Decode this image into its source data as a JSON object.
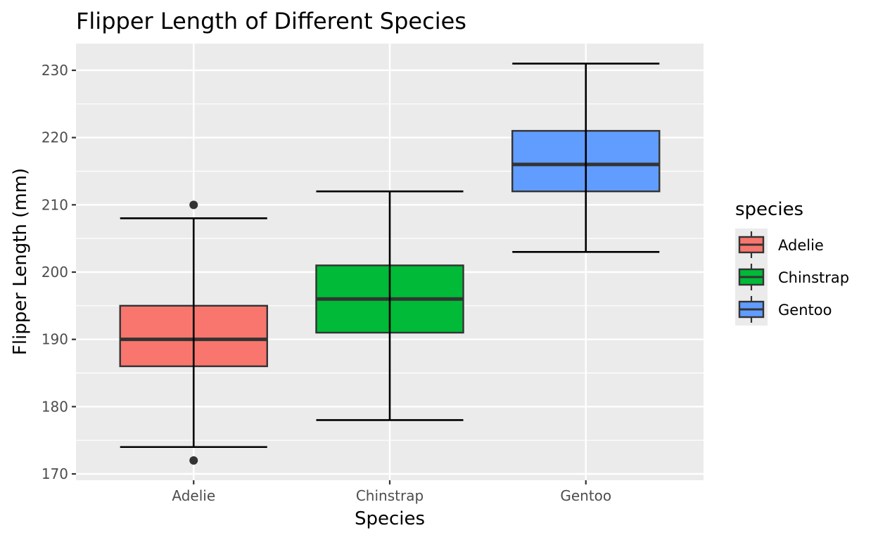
{
  "chart_data": {
    "type": "boxplot",
    "title": "Flipper Length of Different Species",
    "xlabel": "Species",
    "ylabel": "Flipper Length (mm)",
    "ylim": [
      169.06,
      233.97
    ],
    "yticks": [
      170,
      180,
      190,
      200,
      210,
      220,
      230
    ],
    "ytick_labels": [
      "170",
      "180",
      "190",
      "200",
      "210",
      "220",
      "230"
    ],
    "grid": true,
    "categories": [
      "Adelie",
      "Chinstrap",
      "Gentoo"
    ],
    "series": [
      {
        "name": "Adelie",
        "color": "#F8766D",
        "lower_whisker": 174,
        "q1": 186,
        "median": 190,
        "q3": 195,
        "upper_whisker": 208,
        "outliers": [
          210,
          172
        ]
      },
      {
        "name": "Chinstrap",
        "color": "#00BA38",
        "lower_whisker": 178,
        "q1": 191,
        "median": 196,
        "q3": 201,
        "upper_whisker": 212,
        "outliers": []
      },
      {
        "name": "Gentoo",
        "color": "#619CFF",
        "lower_whisker": 203,
        "q1": 212,
        "median": 216,
        "q3": 221,
        "upper_whisker": 231,
        "outliers": []
      }
    ],
    "legend": {
      "title": "species",
      "placement": "right",
      "entries": [
        "Adelie",
        "Chinstrap",
        "Gentoo"
      ]
    },
    "colors": {
      "panel_background": "#EBEBEB",
      "grid": "#FFFFFF",
      "box_outline": "#333333",
      "whisker": "#000000",
      "tick_text": "#4D4D4D"
    }
  }
}
